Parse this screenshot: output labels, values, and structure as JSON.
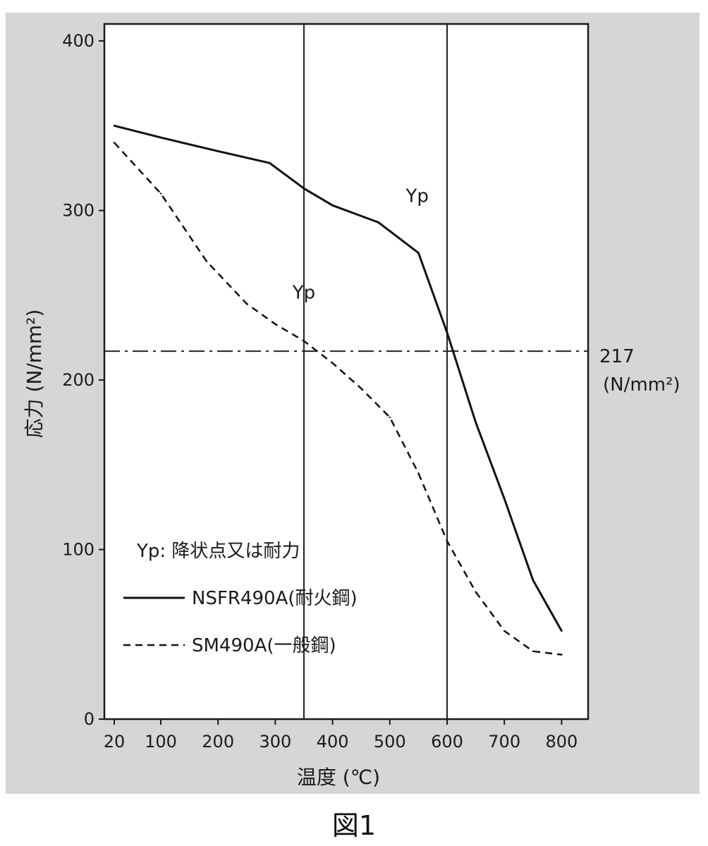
{
  "caption": "図1",
  "chart_data": {
    "type": "line",
    "xlabel": "温度 (℃)",
    "ylabel": "応力 (N/mm²)",
    "xlim": [
      20,
      830
    ],
    "ylim": [
      0,
      410
    ],
    "x_ticks": [
      20,
      100,
      200,
      300,
      400,
      500,
      600,
      700,
      800
    ],
    "x_tick_labels": [
      "20",
      "100",
      "200",
      "300",
      "400",
      "500",
      "600",
      "700",
      "800"
    ],
    "y_ticks": [
      0,
      100,
      200,
      300,
      400
    ],
    "y_tick_labels": [
      "0",
      "100",
      "200",
      "300",
      "400"
    ],
    "reference_lines": {
      "horizontal": {
        "y": 217,
        "label_value": "217",
        "label_unit": "(N/mm²)",
        "style": "dash-dot"
      },
      "vertical": [
        350,
        600
      ]
    },
    "series": [
      {
        "name": "NSFR490A(耐火鋼)",
        "style": "solid",
        "color": "#111111",
        "x": [
          20,
          100,
          200,
          290,
          350,
          400,
          480,
          550,
          600,
          650,
          700,
          750,
          800
        ],
        "y": [
          350,
          343,
          335,
          328,
          313,
          303,
          293,
          275,
          228,
          175,
          130,
          82,
          52
        ]
      },
      {
        "name": "SM490A(一般鋼)",
        "style": "dashed",
        "color": "#111111",
        "x": [
          20,
          100,
          180,
          250,
          300,
          350,
          400,
          450,
          500,
          550,
          600,
          650,
          700,
          750,
          800
        ],
        "y": [
          340,
          310,
          270,
          245,
          233,
          223,
          210,
          195,
          178,
          145,
          105,
          75,
          52,
          40,
          38
        ]
      }
    ],
    "annotations": [
      {
        "text": "Yp",
        "x": 528,
        "y": 305
      },
      {
        "text": "Yp",
        "x": 330,
        "y": 248
      }
    ],
    "legend": {
      "placement": "bottom-left",
      "note": "Yp: 降状点又は耐力",
      "entries": [
        "NSFR490A(耐火鋼)",
        "SM490A(一般鋼)"
      ]
    },
    "grid": false
  },
  "colors": {
    "panel_background": "#d6d6d4",
    "plot_background": "#ffffff",
    "ink": "#111111"
  }
}
